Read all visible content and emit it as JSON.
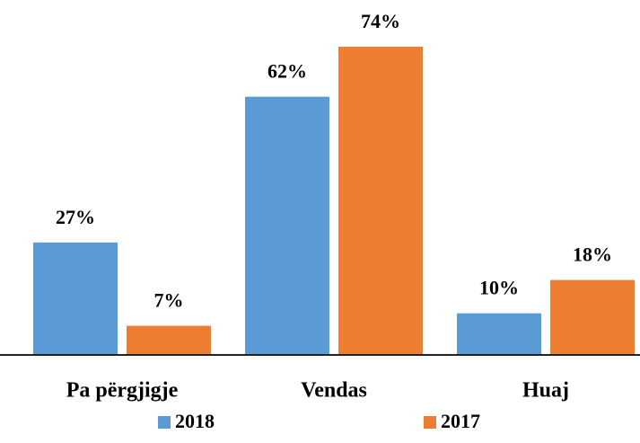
{
  "chart_data": {
    "type": "bar",
    "categories": [
      "Pa përgjigje",
      "Vendas",
      "Huaj"
    ],
    "series": [
      {
        "name": "2018",
        "color": "#5b9bd5",
        "values": [
          27,
          62,
          10
        ],
        "value_labels": [
          "27%",
          "62%",
          "10%"
        ]
      },
      {
        "name": "2017",
        "color": "#ed7d31",
        "values": [
          7,
          74,
          18
        ],
        "value_labels": [
          "7%",
          "74%",
          "18%"
        ]
      }
    ]
  }
}
